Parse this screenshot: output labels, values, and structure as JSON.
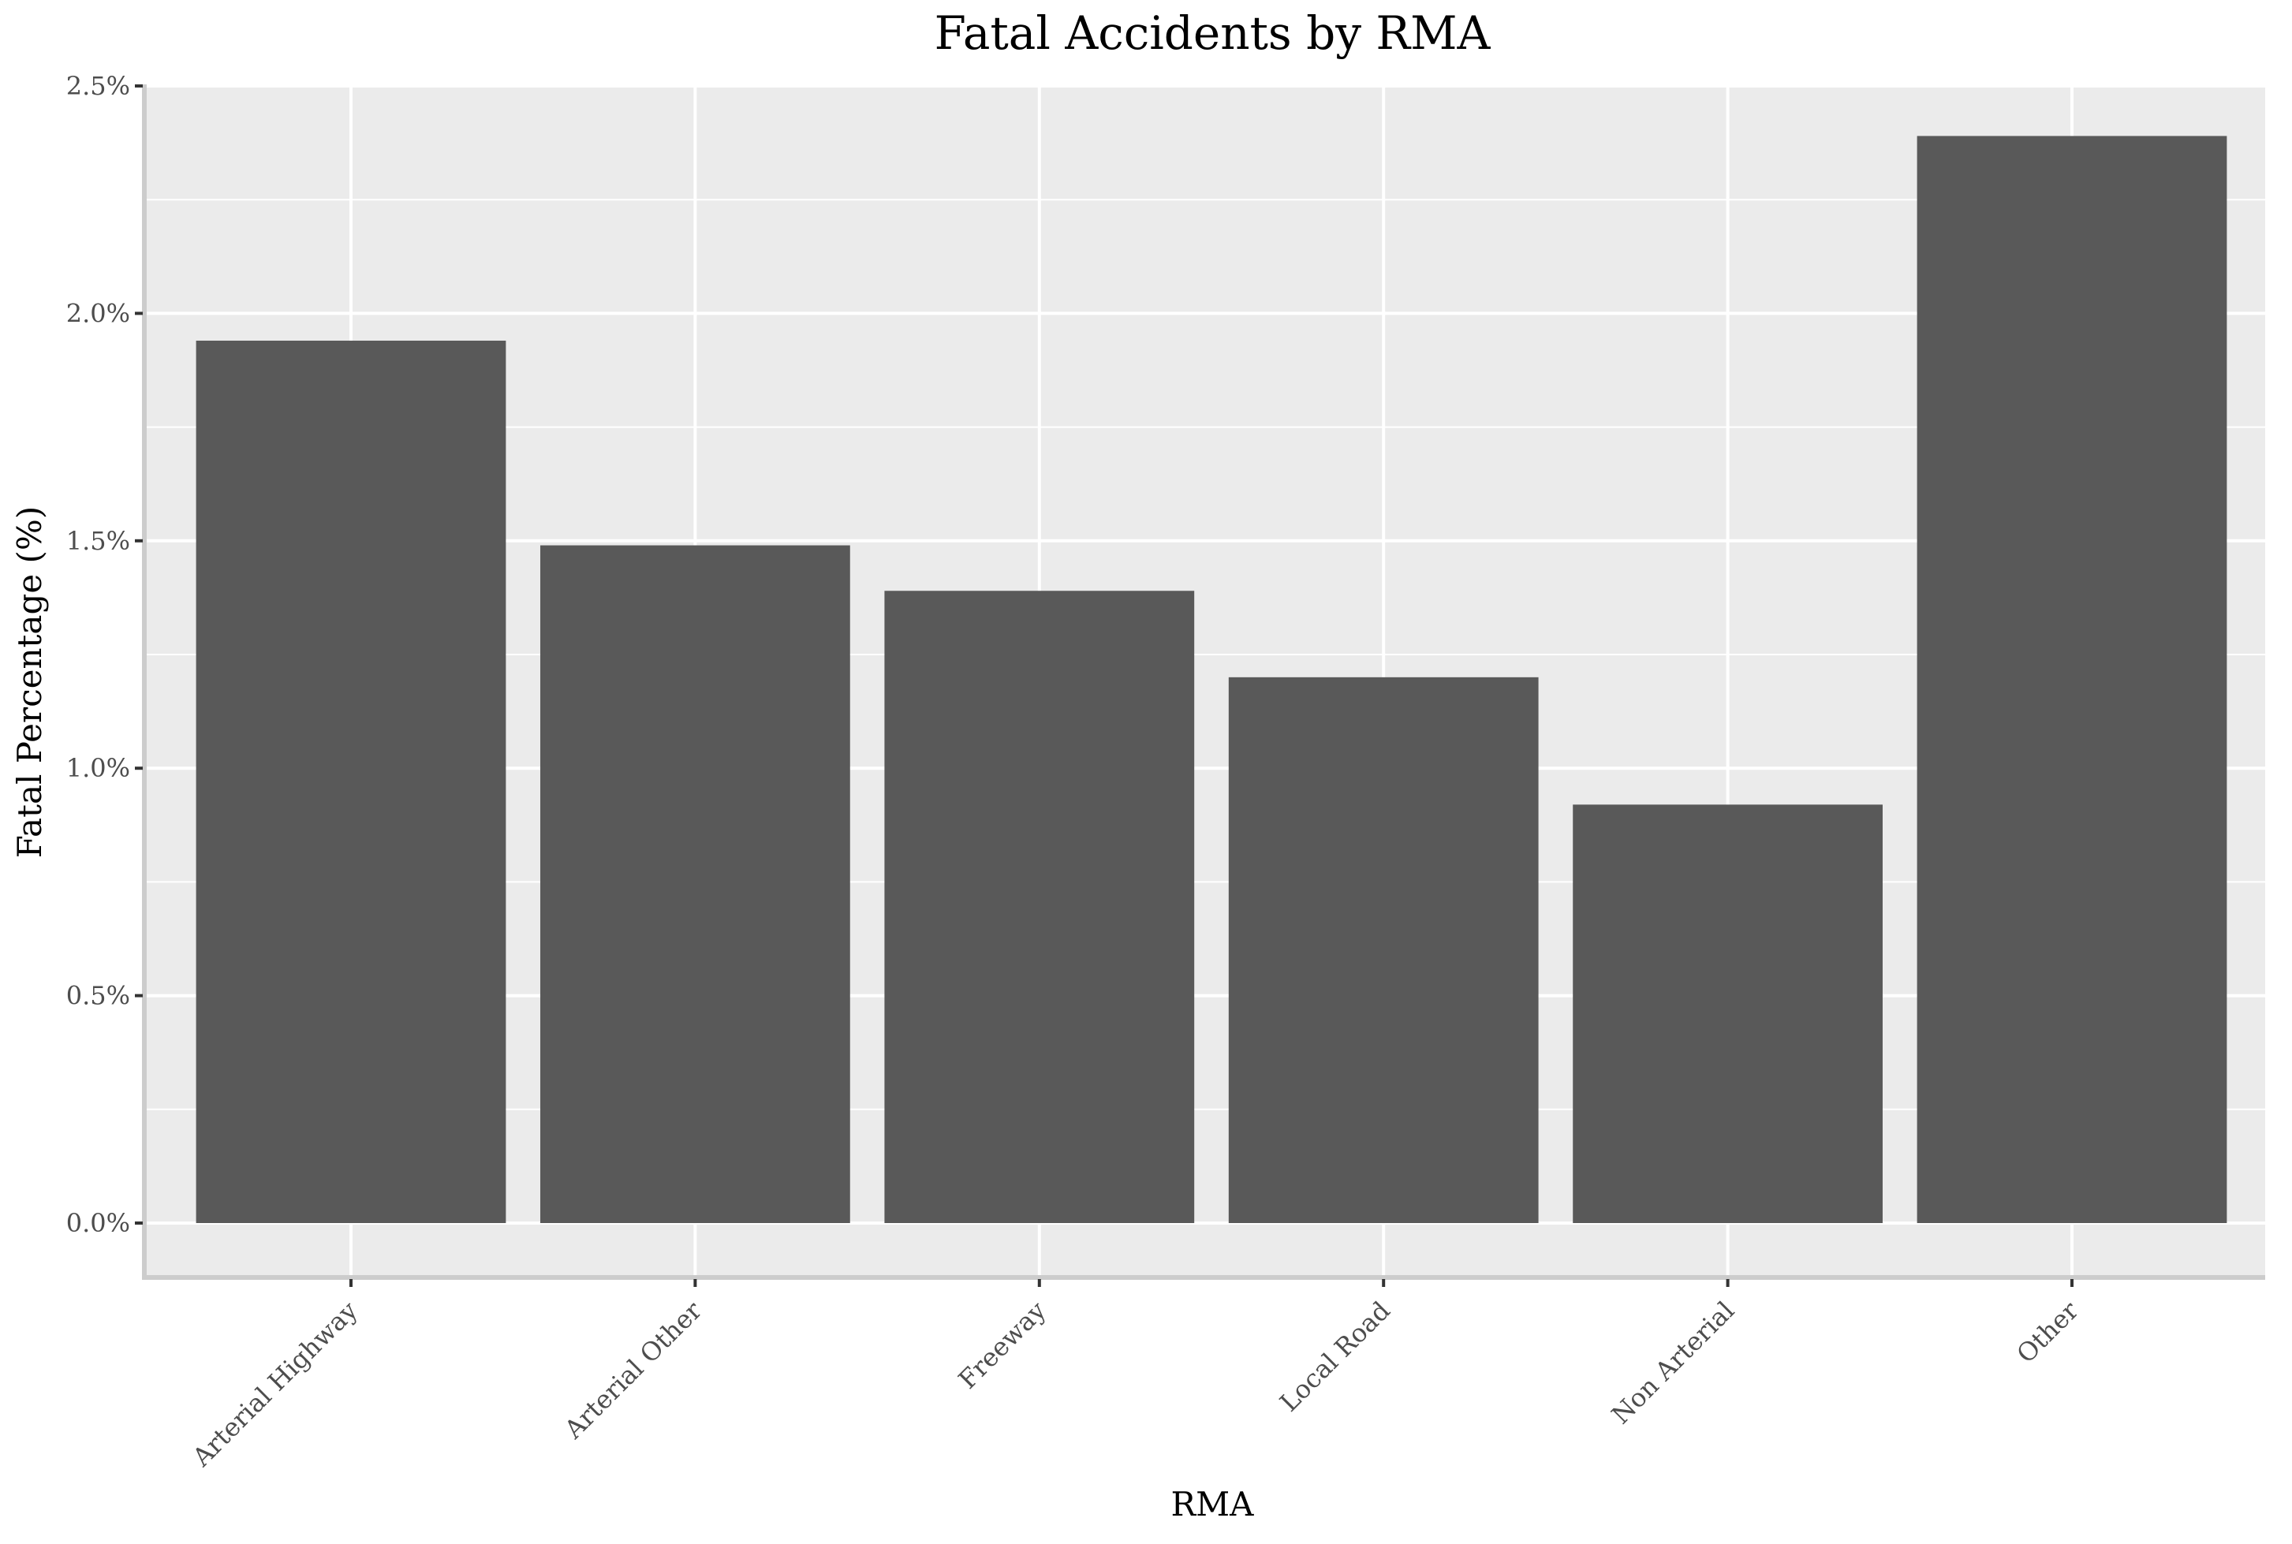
{
  "chart_data": {
    "type": "bar",
    "title": "Fatal Accidents by RMA",
    "xlabel": "RMA",
    "ylabel": "Fatal Percentage (%)",
    "categories": [
      "Arterial Highway",
      "Arterial Other",
      "Freeway",
      "Local Road",
      "Non Arterial",
      "Other"
    ],
    "values": [
      1.94,
      1.49,
      1.39,
      1.2,
      0.92,
      2.39
    ],
    "ylim": [
      0,
      2.5
    ],
    "yticks": [
      0,
      0.5,
      1.0,
      1.5,
      2.0,
      2.5
    ],
    "ytick_labels": [
      "0.0%",
      "0.5%",
      "1.0%",
      "1.5%",
      "2.0%",
      "2.5%"
    ],
    "grid": true,
    "legend": "none",
    "colors": {
      "bar": "#595959",
      "panel": "#ebebeb",
      "grid": "#ffffff",
      "axis": "#cccccc",
      "tick": "#333333"
    }
  }
}
